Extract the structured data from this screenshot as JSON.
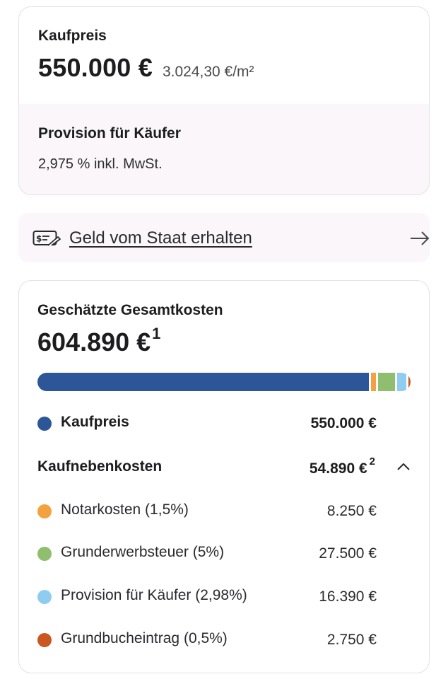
{
  "price_card": {
    "label": "Kaufpreis",
    "price": "550.000 €",
    "price_per_sqm": "3.024,30 €/m²",
    "commission_label": "Provision für Käufer",
    "commission_value": "2,975 % inkl. MwSt."
  },
  "subsidy_banner": {
    "text": "Geld vom Staat erhalten",
    "icon": "money-hand-icon",
    "arrow_icon": "arrow-right-icon"
  },
  "costs_card": {
    "title": "Geschätzte Gesamtkosten",
    "total": "604.890 €",
    "total_footnote": "1",
    "bar_fractions": {
      "kaufpreis": 0.909,
      "notar": 0.0136,
      "grunderwerb": 0.0455,
      "provision": 0.0271,
      "grundbuch": 0.0045
    },
    "kaufpreis": {
      "label": "Kaufpreis",
      "value": "550.000 €",
      "color": "#2d5699"
    },
    "nebenkosten": {
      "label": "Kaufnebenkosten",
      "value": "54.890 €",
      "footnote": "2",
      "chevron_icon": "chevron-up-icon"
    },
    "items": [
      {
        "label": "Notarkosten (1,5%)",
        "value": "8.250 €",
        "color": "#f4a13f"
      },
      {
        "label": "Grunderwerbsteuer (5%)",
        "value": "27.500 €",
        "color": "#8fbe6e"
      },
      {
        "label": "Provision für Käufer (2,98%)",
        "value": "16.390 €",
        "color": "#8fcdf0"
      },
      {
        "label": "Grundbucheintrag (0,5%)",
        "value": "2.750 €",
        "color": "#c9571f"
      }
    ]
  }
}
